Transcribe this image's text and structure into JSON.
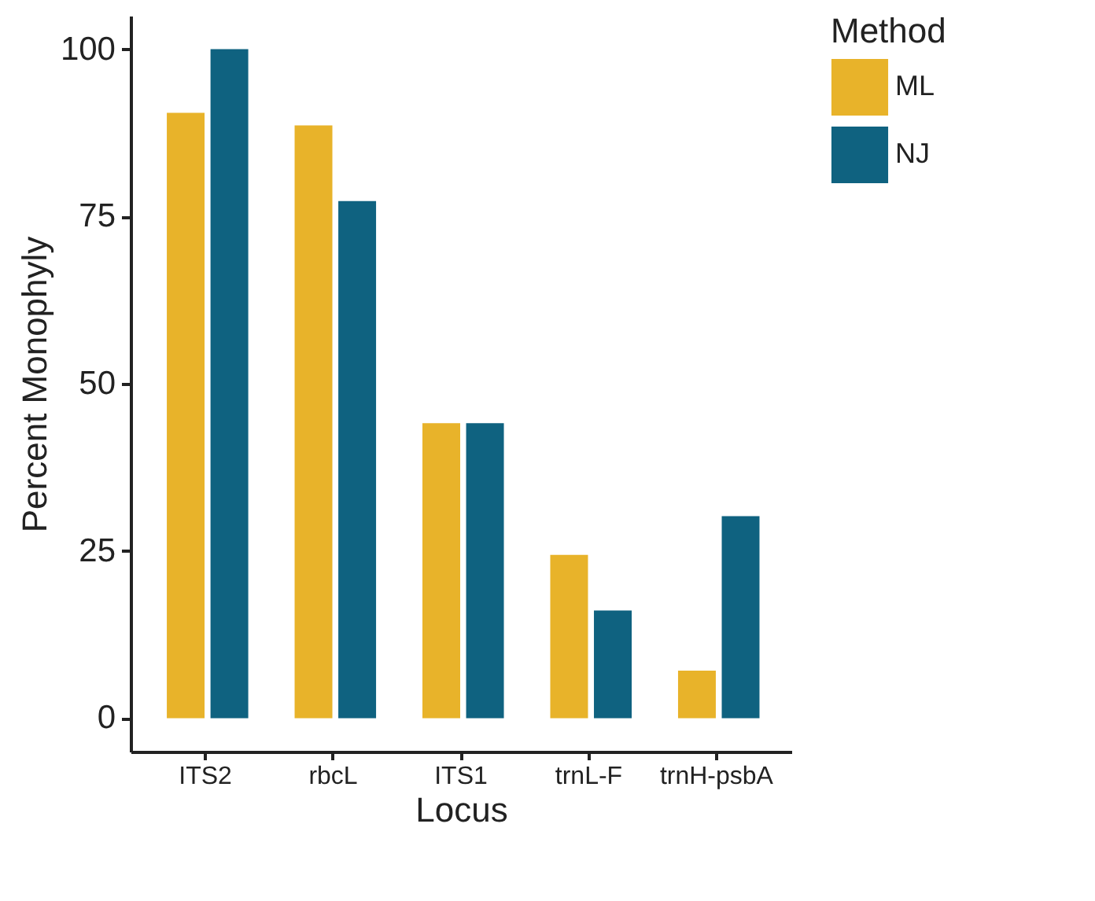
{
  "chart_data": {
    "type": "bar",
    "xlabel": "Locus",
    "ylabel": "Percent Monophyly",
    "legend_title": "Method",
    "legend": "right",
    "categories": [
      "ITS2",
      "rbcL",
      "ITS1",
      "trnL-F",
      "trnH-psbA"
    ],
    "series": [
      {
        "name": "ML",
        "color": "#e8b32a",
        "values": [
          90.5,
          88.6,
          44.1,
          24.4,
          7.1
        ]
      },
      {
        "name": "NJ",
        "color": "#0f6280",
        "values": [
          100,
          77.3,
          44.1,
          16.1,
          30.2
        ]
      }
    ],
    "ylim": [
      -5,
      105
    ],
    "yticks": [
      0,
      25,
      50,
      75,
      100
    ]
  }
}
